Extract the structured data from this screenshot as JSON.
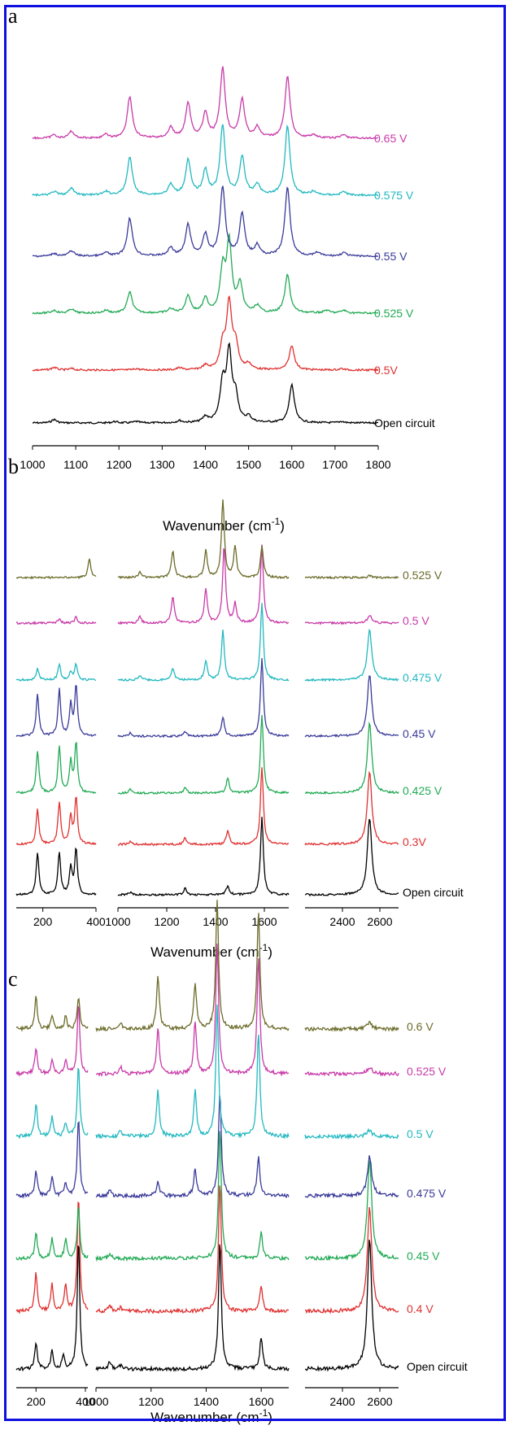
{
  "chart_data": [
    {
      "type": "line",
      "panel_label": "a",
      "xlabel": "Wavenumber (cm",
      "xlabel_sup": "-1",
      "xlabel_close": ")",
      "xlim": [
        1000,
        1800
      ],
      "xticks": [
        1000,
        1100,
        1200,
        1300,
        1400,
        1500,
        1600,
        1700,
        1800
      ],
      "grid": false,
      "series": [
        {
          "name": "Open circuit",
          "color": "#000000",
          "peaks": [
            [
              1050,
              0.05
            ],
            [
              1190,
              0.02
            ],
            [
              1240,
              0.02
            ],
            [
              1340,
              0.03
            ],
            [
              1400,
              0.08
            ],
            [
              1440,
              0.55
            ],
            [
              1455,
              1.0
            ],
            [
              1470,
              0.35
            ],
            [
              1500,
              0.08
            ],
            [
              1600,
              0.55
            ],
            [
              1715,
              0.02
            ]
          ]
        },
        {
          "name": "0.5V",
          "color": "#e03030",
          "peaks": [
            [
              1050,
              0.04
            ],
            [
              1090,
              0.02
            ],
            [
              1240,
              0.02
            ],
            [
              1340,
              0.03
            ],
            [
              1400,
              0.06
            ],
            [
              1440,
              0.35
            ],
            [
              1455,
              0.95
            ],
            [
              1470,
              0.35
            ],
            [
              1500,
              0.08
            ],
            [
              1600,
              0.35
            ],
            [
              1715,
              0.02
            ]
          ]
        },
        {
          "name": "0.525 V",
          "color": "#22aa55",
          "peaks": [
            [
              1050,
              0.04
            ],
            [
              1090,
              0.06
            ],
            [
              1170,
              0.04
            ],
            [
              1225,
              0.3
            ],
            [
              1320,
              0.06
            ],
            [
              1360,
              0.25
            ],
            [
              1400,
              0.2
            ],
            [
              1440,
              0.6
            ],
            [
              1455,
              1.0
            ],
            [
              1480,
              0.4
            ],
            [
              1520,
              0.1
            ],
            [
              1590,
              0.55
            ],
            [
              1680,
              0.04
            ],
            [
              1720,
              0.04
            ]
          ]
        },
        {
          "name": "0.55 V",
          "color": "#3a3a9a",
          "peaks": [
            [
              1050,
              0.04
            ],
            [
              1090,
              0.08
            ],
            [
              1170,
              0.05
            ],
            [
              1225,
              0.55
            ],
            [
              1320,
              0.12
            ],
            [
              1360,
              0.45
            ],
            [
              1400,
              0.3
            ],
            [
              1440,
              1.0
            ],
            [
              1485,
              0.6
            ],
            [
              1520,
              0.15
            ],
            [
              1590,
              1.0
            ],
            [
              1660,
              0.05
            ],
            [
              1720,
              0.05
            ]
          ]
        },
        {
          "name": "0.575 V",
          "color": "#22b8c0",
          "peaks": [
            [
              1050,
              0.05
            ],
            [
              1090,
              0.1
            ],
            [
              1170,
              0.05
            ],
            [
              1225,
              0.55
            ],
            [
              1320,
              0.15
            ],
            [
              1360,
              0.5
            ],
            [
              1400,
              0.35
            ],
            [
              1440,
              1.0
            ],
            [
              1485,
              0.55
            ],
            [
              1520,
              0.15
            ],
            [
              1590,
              1.0
            ],
            [
              1650,
              0.05
            ],
            [
              1720,
              0.05
            ]
          ]
        },
        {
          "name": "0.65 V",
          "color": "#c83aa8",
          "peaks": [
            [
              1050,
              0.05
            ],
            [
              1090,
              0.1
            ],
            [
              1170,
              0.05
            ],
            [
              1225,
              0.6
            ],
            [
              1320,
              0.15
            ],
            [
              1360,
              0.5
            ],
            [
              1400,
              0.35
            ],
            [
              1440,
              1.0
            ],
            [
              1485,
              0.55
            ],
            [
              1520,
              0.15
            ],
            [
              1590,
              0.9
            ],
            [
              1650,
              0.05
            ],
            [
              1720,
              0.05
            ]
          ]
        }
      ]
    },
    {
      "type": "line",
      "panel_label": "b",
      "xlabel": "Wavenumber (cm",
      "xlabel_sup": "-1",
      "xlabel_close": ")",
      "segments": [
        {
          "xlim": [
            100,
            400
          ],
          "xticks": [
            200,
            400
          ]
        },
        {
          "xlim": [
            1000,
            1700
          ],
          "xticks": [
            1000,
            1200,
            1400,
            1600
          ]
        },
        {
          "xlim": [
            2200,
            2700
          ],
          "xticks": [
            2400,
            2600
          ]
        }
      ],
      "grid": false,
      "series": [
        {
          "name": "Open circuit",
          "color": "#000000",
          "peaks": [
            [
              180,
              0.55
            ],
            [
              262,
              0.55
            ],
            [
              305,
              0.35
            ],
            [
              325,
              0.6
            ],
            [
              1050,
              0.03
            ],
            [
              1275,
              0.08
            ],
            [
              1450,
              0.12
            ],
            [
              1590,
              1.0
            ],
            [
              2545,
              1.0
            ]
          ]
        },
        {
          "name": "0.3V",
          "color": "#e03030",
          "peaks": [
            [
              180,
              0.45
            ],
            [
              262,
              0.55
            ],
            [
              305,
              0.35
            ],
            [
              325,
              0.6
            ],
            [
              1050,
              0.03
            ],
            [
              1275,
              0.08
            ],
            [
              1450,
              0.18
            ],
            [
              1590,
              1.0
            ],
            [
              2545,
              0.95
            ]
          ]
        },
        {
          "name": "0.425 V",
          "color": "#22aa55",
          "peaks": [
            [
              180,
              0.55
            ],
            [
              262,
              0.6
            ],
            [
              305,
              0.4
            ],
            [
              325,
              0.65
            ],
            [
              1050,
              0.05
            ],
            [
              1275,
              0.08
            ],
            [
              1450,
              0.2
            ],
            [
              1590,
              1.0
            ],
            [
              2545,
              0.9
            ]
          ]
        },
        {
          "name": "0.45 V",
          "color": "#3a3a9a",
          "peaks": [
            [
              180,
              0.55
            ],
            [
              262,
              0.6
            ],
            [
              305,
              0.4
            ],
            [
              325,
              0.65
            ],
            [
              1050,
              0.04
            ],
            [
              1275,
              0.06
            ],
            [
              1430,
              0.25
            ],
            [
              1590,
              1.0
            ],
            [
              2545,
              0.8
            ]
          ]
        },
        {
          "name": "0.475 V",
          "color": "#22b8c0",
          "peaks": [
            [
              180,
              0.15
            ],
            [
              262,
              0.2
            ],
            [
              305,
              0.1
            ],
            [
              325,
              0.2
            ],
            [
              1090,
              0.06
            ],
            [
              1225,
              0.15
            ],
            [
              1360,
              0.25
            ],
            [
              1430,
              0.65
            ],
            [
              1590,
              1.0
            ],
            [
              2545,
              0.65
            ]
          ]
        },
        {
          "name": "0.5 V",
          "color": "#c83aa8",
          "peaks": [
            [
              262,
              0.05
            ],
            [
              325,
              0.08
            ],
            [
              1090,
              0.08
            ],
            [
              1225,
              0.35
            ],
            [
              1360,
              0.45
            ],
            [
              1435,
              1.0
            ],
            [
              1480,
              0.25
            ],
            [
              1590,
              1.0
            ],
            [
              2545,
              0.1
            ]
          ]
        },
        {
          "name": "0.525 V",
          "color": "#6b6b2a",
          "peaks": [
            [
              375,
              0.25
            ],
            [
              1090,
              0.08
            ],
            [
              1225,
              0.35
            ],
            [
              1360,
              0.35
            ],
            [
              1430,
              1.0
            ],
            [
              1480,
              0.4
            ],
            [
              1590,
              0.4
            ],
            [
              2545,
              0.02
            ]
          ]
        }
      ]
    },
    {
      "type": "line",
      "panel_label": "c",
      "xlabel": "Wavenumber (cm",
      "xlabel_sup": "-1",
      "xlabel_close": ")",
      "segments": [
        {
          "xlim": [
            120,
            410
          ],
          "xticks": [
            200,
            400
          ]
        },
        {
          "xlim": [
            1000,
            1700
          ],
          "xticks": [
            1000,
            1200,
            1400,
            1600
          ]
        },
        {
          "xlim": [
            2200,
            2700
          ],
          "xticks": [
            2400,
            2600
          ]
        }
      ],
      "grid": false,
      "series": [
        {
          "name": "Open circuit",
          "color": "#000000",
          "peaks": [
            [
              200,
              0.2
            ],
            [
              265,
              0.15
            ],
            [
              310,
              0.1
            ],
            [
              372,
              1.0
            ],
            [
              1050,
              0.05
            ],
            [
              1090,
              0.03
            ],
            [
              1450,
              1.0
            ],
            [
              1600,
              0.25
            ],
            [
              2545,
              1.0
            ]
          ]
        },
        {
          "name": "0.4 V",
          "color": "#e03030",
          "peaks": [
            [
              200,
              0.3
            ],
            [
              265,
              0.2
            ],
            [
              320,
              0.2
            ],
            [
              372,
              0.9
            ],
            [
              1050,
              0.05
            ],
            [
              1090,
              0.03
            ],
            [
              1450,
              1.0
            ],
            [
              1600,
              0.2
            ],
            [
              2545,
              0.8
            ]
          ]
        },
        {
          "name": "0.45 V",
          "color": "#22aa55",
          "peaks": [
            [
              200,
              0.2
            ],
            [
              265,
              0.15
            ],
            [
              320,
              0.15
            ],
            [
              372,
              0.4
            ],
            [
              1050,
              0.04
            ],
            [
              1450,
              1.0
            ],
            [
              1600,
              0.2
            ],
            [
              2545,
              0.75
            ]
          ]
        },
        {
          "name": "0.475 V",
          "color": "#3a3a9a",
          "peaks": [
            [
              200,
              0.2
            ],
            [
              265,
              0.15
            ],
            [
              320,
              0.1
            ],
            [
              372,
              0.6
            ],
            [
              1050,
              0.04
            ],
            [
              1225,
              0.1
            ],
            [
              1360,
              0.2
            ],
            [
              1450,
              0.8
            ],
            [
              1590,
              0.3
            ],
            [
              2545,
              0.3
            ]
          ]
        },
        {
          "name": "0.5 V",
          "color": "#22b8c0",
          "peaks": [
            [
              200,
              0.25
            ],
            [
              265,
              0.15
            ],
            [
              320,
              0.1
            ],
            [
              372,
              0.55
            ],
            [
              1090,
              0.05
            ],
            [
              1225,
              0.35
            ],
            [
              1360,
              0.35
            ],
            [
              1440,
              1.0
            ],
            [
              1590,
              0.8
            ],
            [
              2545,
              0.05
            ]
          ]
        },
        {
          "name": "0.525 V",
          "color": "#c83aa8",
          "peaks": [
            [
              200,
              0.2
            ],
            [
              265,
              0.1
            ],
            [
              320,
              0.1
            ],
            [
              372,
              0.55
            ],
            [
              1090,
              0.05
            ],
            [
              1225,
              0.35
            ],
            [
              1360,
              0.4
            ],
            [
              1440,
              1.0
            ],
            [
              1590,
              0.9
            ],
            [
              2545,
              0.05
            ]
          ]
        },
        {
          "name": "0.6 V",
          "color": "#6b6b2a",
          "peaks": [
            [
              200,
              0.25
            ],
            [
              265,
              0.1
            ],
            [
              320,
              0.1
            ],
            [
              372,
              0.25
            ],
            [
              1090,
              0.05
            ],
            [
              1225,
              0.4
            ],
            [
              1360,
              0.35
            ],
            [
              1440,
              1.0
            ],
            [
              1590,
              0.9
            ],
            [
              2545,
              0.05
            ]
          ]
        }
      ]
    }
  ]
}
